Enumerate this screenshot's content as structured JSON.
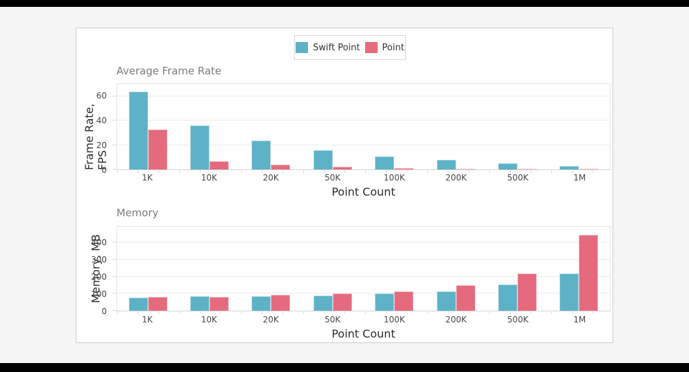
{
  "page": {
    "background_color": "#f4f5f4",
    "frame_color": "#000000",
    "card_background": "#ffffff"
  },
  "legend": {
    "items": [
      {
        "label": "Swift Point",
        "color": "#5DB2C7"
      },
      {
        "label": "Point",
        "color": "#E56A7D"
      }
    ]
  },
  "chart_data": [
    {
      "type": "bar",
      "title": "Average Frame Rate",
      "xlabel": "Point Count",
      "ylabel": "Frame Rate, FPS",
      "categories": [
        "1K",
        "10K",
        "20K",
        "50K",
        "100K",
        "200K",
        "500K",
        "1M"
      ],
      "series": [
        {
          "name": "Swift Point",
          "color": "#5DB2C7",
          "values": [
            64,
            36,
            24,
            16,
            11,
            8,
            5,
            2.8
          ]
        },
        {
          "name": "Point",
          "color": "#E56A7D",
          "values": [
            33,
            7,
            4,
            2,
            1,
            0.6,
            0.8,
            0.2
          ]
        }
      ],
      "yticks": [
        0,
        20,
        40,
        60
      ],
      "ylim": [
        0,
        70
      ],
      "grid": true,
      "legend_position": "top-center"
    },
    {
      "type": "bar",
      "title": "Memory",
      "xlabel": "Point Count",
      "ylabel": "Memory, MB",
      "categories": [
        "1K",
        "10K",
        "20K",
        "50K",
        "100K",
        "200K",
        "500K",
        "1M"
      ],
      "series": [
        {
          "name": "Swift Point",
          "color": "#5DB2C7",
          "values": [
            78,
            84,
            87,
            88,
            100,
            113,
            155,
            218
          ]
        },
        {
          "name": "Point",
          "color": "#E56A7D",
          "values": [
            80,
            81,
            95,
            100,
            115,
            150,
            220,
            445
          ]
        }
      ],
      "yticks": [
        0,
        100,
        200,
        300,
        400
      ],
      "ylim": [
        0,
        495
      ],
      "grid": true,
      "legend_position": "top-center"
    }
  ]
}
